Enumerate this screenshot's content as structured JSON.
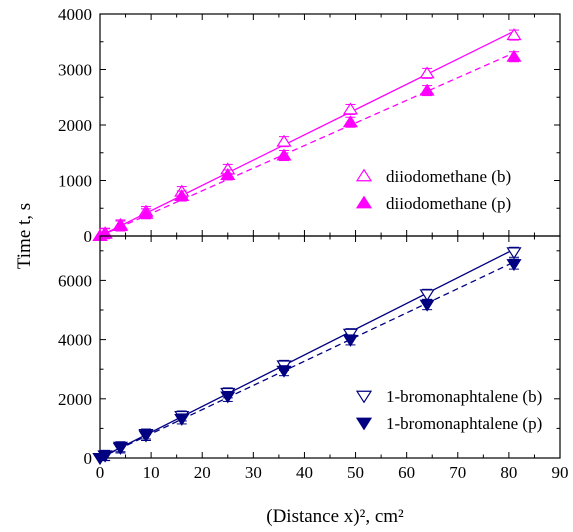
{
  "chart_data": [
    {
      "type": "scatter",
      "panel": "top",
      "ylabel": "Time t, s",
      "xlim": [
        0,
        90
      ],
      "ylim": [
        0,
        4000
      ],
      "yticks": [
        0,
        1000,
        2000,
        3000,
        4000
      ],
      "legend_placement": "lower-right",
      "series": [
        {
          "name": "diiodomethane (b)",
          "marker": "triangle-up-open",
          "color": "#ff00ff",
          "line": "solid",
          "x": [
            0,
            1,
            4,
            9,
            16,
            25,
            36,
            49,
            64,
            81
          ],
          "y": [
            0,
            50,
            200,
            440,
            800,
            1200,
            1700,
            2280,
            2930,
            3620
          ],
          "fit_y": [
            0,
            3690
          ]
        },
        {
          "name": "diiodomethane (p)",
          "marker": "triangle-up-filled",
          "color": "#ff00ff",
          "line": "dashed",
          "x": [
            0,
            1,
            4,
            9,
            16,
            25,
            36,
            49,
            64,
            81
          ],
          "y": [
            0,
            40,
            180,
            400,
            720,
            1100,
            1450,
            2050,
            2620,
            3230
          ],
          "fit_y": [
            0,
            3300
          ]
        }
      ]
    },
    {
      "type": "scatter",
      "panel": "bottom",
      "xlabel": "(Distance x)², cm²",
      "xlim": [
        0,
        90
      ],
      "ylim": [
        0,
        7500
      ],
      "xticks": [
        0,
        10,
        20,
        30,
        40,
        50,
        60,
        70,
        80,
        90
      ],
      "yticks": [
        0,
        2000,
        4000,
        6000
      ],
      "legend_placement": "lower-right",
      "series": [
        {
          "name": "1-bromonaphtalene (b)",
          "marker": "triangle-down-open",
          "color": "#000080",
          "line": "solid",
          "x": [
            0,
            1,
            4,
            9,
            16,
            25,
            36,
            49,
            64,
            81
          ],
          "y": [
            0,
            90,
            380,
            810,
            1420,
            2200,
            3130,
            4200,
            5530,
            6950
          ],
          "fit_y": [
            0,
            7050
          ]
        },
        {
          "name": "1-bromonaphtalene (p)",
          "marker": "triangle-down-filled",
          "color": "#000080",
          "line": "dashed",
          "x": [
            0,
            1,
            4,
            9,
            16,
            25,
            36,
            49,
            64,
            81
          ],
          "y": [
            0,
            80,
            340,
            760,
            1320,
            2080,
            2950,
            3990,
            5180,
            6550
          ],
          "fit_y": [
            0,
            6620
          ]
        }
      ]
    }
  ]
}
